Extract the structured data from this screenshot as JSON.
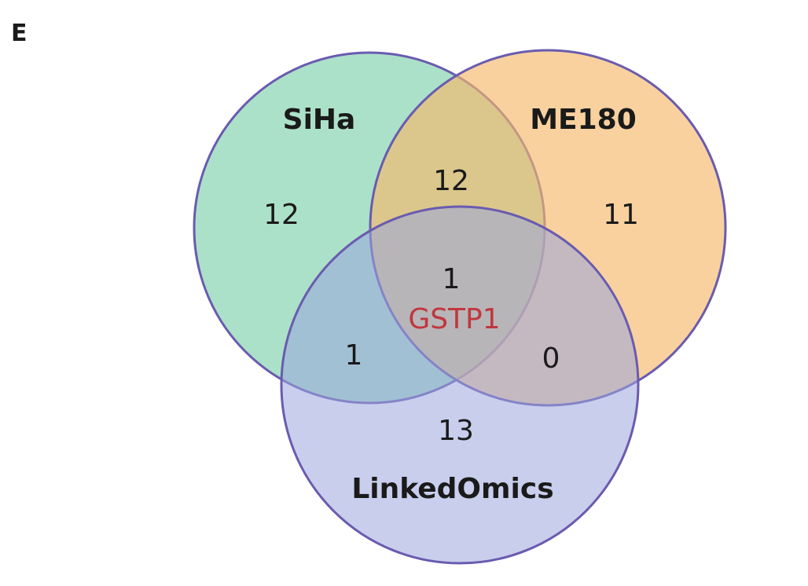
{
  "panel_label": "E",
  "sets": [
    {
      "key": "siha",
      "label": "SiHa",
      "color": "#7fd1ac"
    },
    {
      "key": "me180",
      "label": "ME180",
      "color": "#f5b96b"
    },
    {
      "key": "linkedomics",
      "label": "LinkedOmics",
      "color": "#9aa5dc"
    }
  ],
  "regions": {
    "siha_only": "12",
    "me180_only": "11",
    "linkedomics_only": "13",
    "siha_me180": "12",
    "siha_linkedomics": "1",
    "me180_linkedomics": "0",
    "all_three": "1"
  },
  "shared_gene": {
    "name": "GSTP1",
    "color": "#c0373f"
  },
  "outline_color": "#6a5bb0"
}
